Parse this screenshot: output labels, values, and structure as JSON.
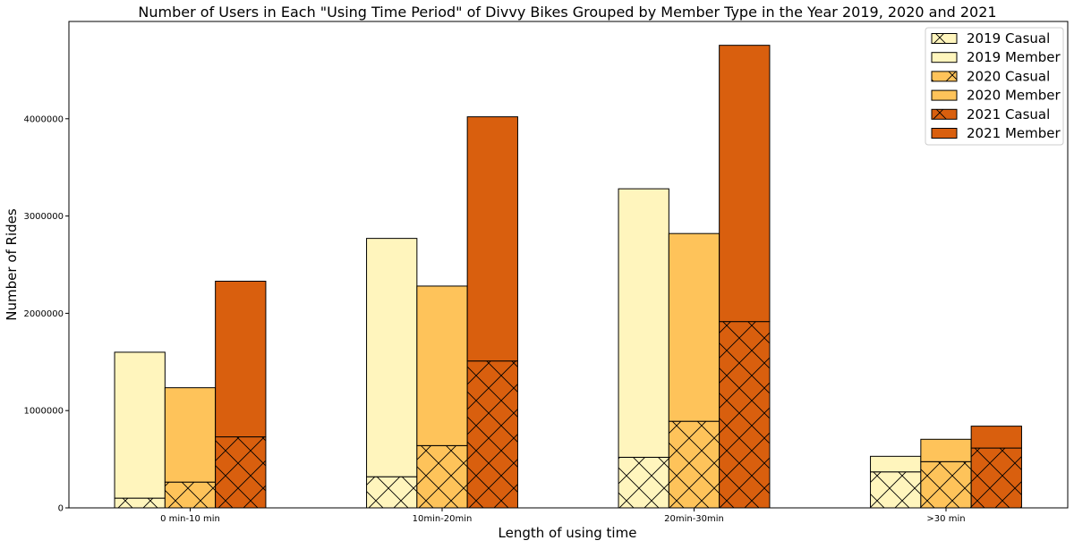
{
  "chart_data": {
    "type": "bar",
    "stacked": true,
    "grouped": true,
    "title": "Number of Users in Each \"Using Time Period\" of Divvy Bikes Grouped by Member Type in the Year 2019, 2020 and 2021",
    "xlabel": "Length of using time",
    "ylabel": "Number of Rides",
    "categories": [
      "0 min-10 min",
      "10min-20min",
      "20min-30min",
      ">30 min"
    ],
    "ylim": [
      0,
      5000000
    ],
    "yticks": [
      0,
      1000000,
      2000000,
      3000000,
      4000000
    ],
    "ytick_labels": [
      "0",
      "1000000",
      "2000000",
      "3000000",
      "4000000"
    ],
    "grid": false,
    "legend_position": "top-right",
    "groups": [
      {
        "year": "2019",
        "color": "#fff5bd",
        "casual_name": "2019 Casual",
        "member_name": "2019 Member",
        "casual": [
          100000,
          320000,
          520000,
          370000
        ],
        "member": [
          1500000,
          2450000,
          2760000,
          160000
        ]
      },
      {
        "year": "2020",
        "color": "#fec35a",
        "casual_name": "2020 Casual",
        "member_name": "2020 Member",
        "casual": [
          265000,
          640000,
          890000,
          475000
        ],
        "member": [
          970000,
          1640000,
          1930000,
          230000
        ]
      },
      {
        "year": "2021",
        "color": "#d95f0e",
        "casual_name": "2021 Casual",
        "member_name": "2021 Member",
        "casual": [
          730000,
          1510000,
          1915000,
          615000
        ],
        "member": [
          1600000,
          2510000,
          2840000,
          225000
        ]
      }
    ]
  }
}
